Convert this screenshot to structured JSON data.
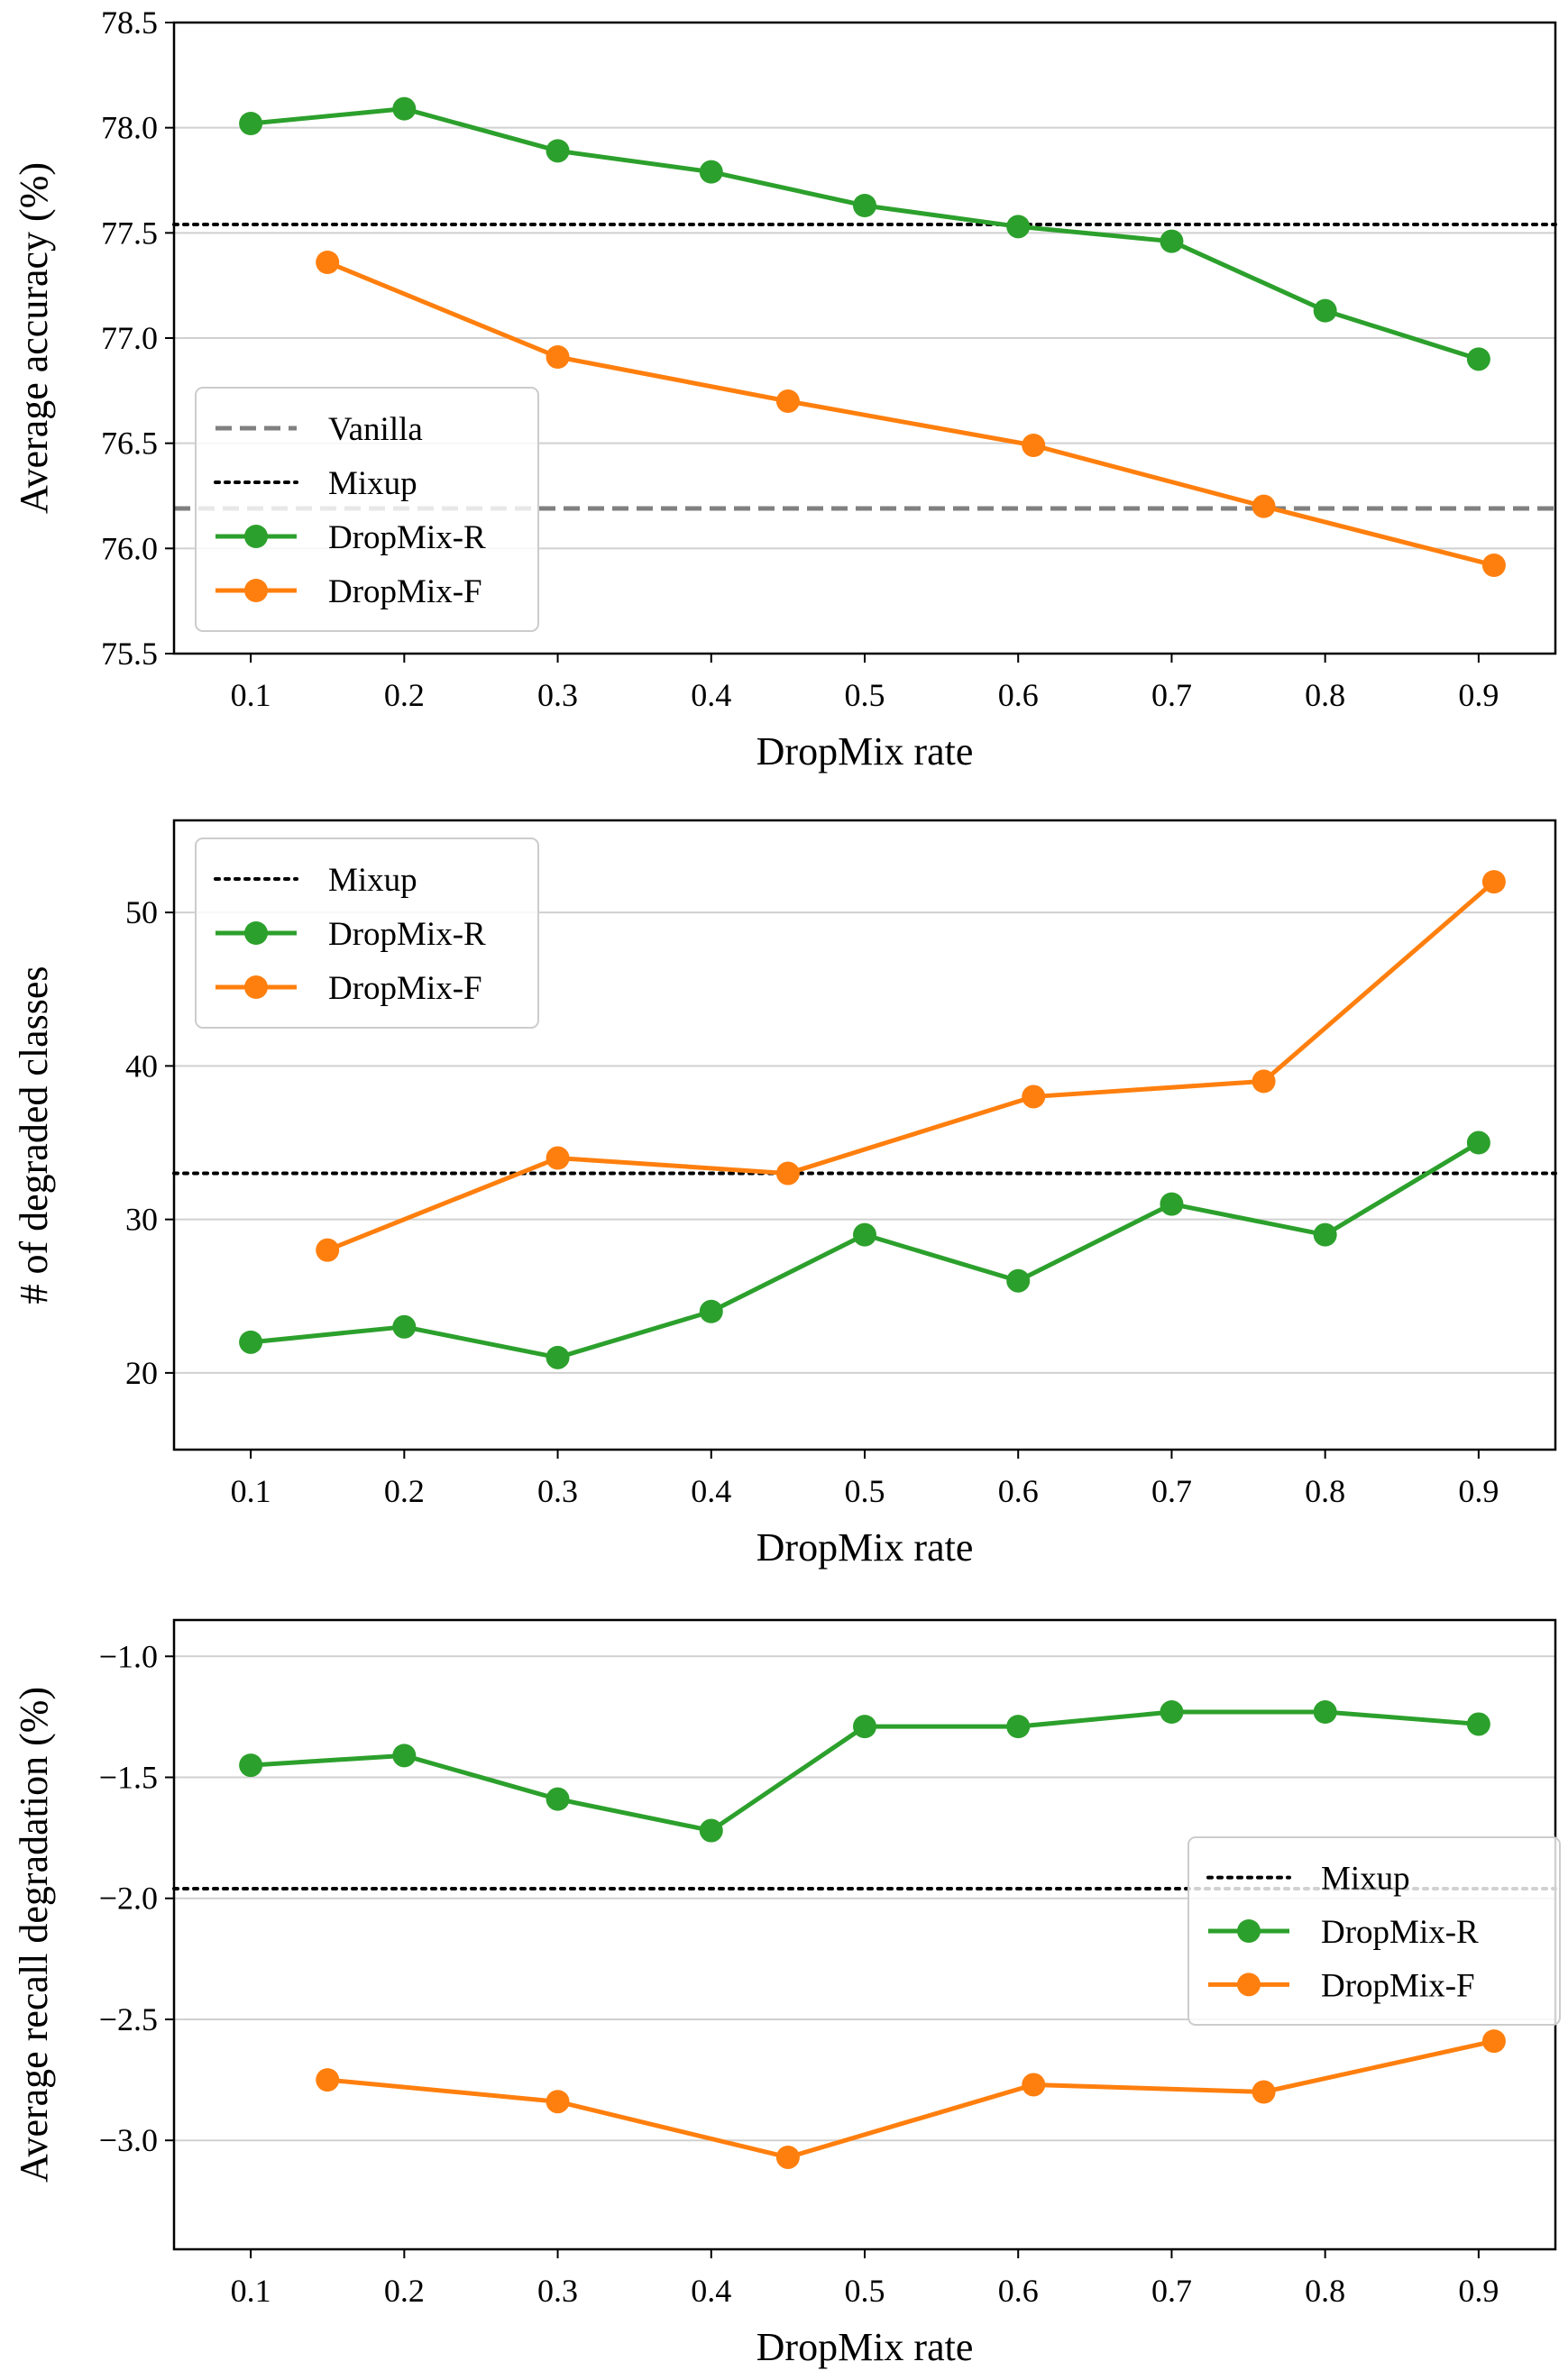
{
  "colors": {
    "dropmix_r": "#2ca02c",
    "dropmix_f": "#ff7f0e",
    "vanilla": "#808080",
    "mixup": "#000000",
    "grid": "#d0d0d0"
  },
  "chart_data": [
    {
      "type": "line",
      "xlabel": "DropMix rate",
      "ylabel": "Average accuracy (%)",
      "xlim": [
        0.05,
        0.95
      ],
      "ylim": [
        75.5,
        78.5
      ],
      "xticks": [
        0.1,
        0.2,
        0.3,
        0.4,
        0.5,
        0.6,
        0.7,
        0.8,
        0.9
      ],
      "xtick_labels": [
        "0.1",
        "0.2",
        "0.3",
        "0.4",
        "0.5",
        "0.6",
        "0.7",
        "0.8",
        "0.9"
      ],
      "yticks": [
        75.5,
        76.0,
        76.5,
        77.0,
        77.5,
        78.0,
        78.5
      ],
      "ytick_labels": [
        "75.5",
        "76.0",
        "76.5",
        "77.0",
        "77.5",
        "78.0",
        "78.5"
      ],
      "grid": "horizontal",
      "legend_position": "center-left",
      "legend": [
        "Vanilla",
        "Mixup",
        "DropMix-R",
        "DropMix-F"
      ],
      "reference_lines": [
        {
          "name": "Vanilla",
          "y": 76.19,
          "style": "dashed",
          "color": "#808080"
        },
        {
          "name": "Mixup",
          "y": 77.54,
          "style": "dotted",
          "color": "#000000"
        }
      ],
      "series": [
        {
          "name": "DropMix-R",
          "color": "#2ca02c",
          "x": [
            0.1,
            0.2,
            0.3,
            0.4,
            0.5,
            0.6,
            0.7,
            0.8,
            0.9
          ],
          "y": [
            78.02,
            78.09,
            77.89,
            77.79,
            77.63,
            77.53,
            77.46,
            77.13,
            76.9
          ]
        },
        {
          "name": "DropMix-F",
          "color": "#ff7f0e",
          "x": [
            0.15,
            0.3,
            0.45,
            0.61,
            0.76,
            0.91
          ],
          "y": [
            77.36,
            76.91,
            76.7,
            76.49,
            76.2,
            75.92
          ]
        }
      ]
    },
    {
      "type": "line",
      "xlabel": "DropMix rate",
      "ylabel": "# of degraded classes",
      "xlim": [
        0.05,
        0.95
      ],
      "ylim": [
        15,
        56
      ],
      "xticks": [
        0.1,
        0.2,
        0.3,
        0.4,
        0.5,
        0.6,
        0.7,
        0.8,
        0.9
      ],
      "xtick_labels": [
        "0.1",
        "0.2",
        "0.3",
        "0.4",
        "0.5",
        "0.6",
        "0.7",
        "0.8",
        "0.9"
      ],
      "yticks": [
        20,
        30,
        40,
        50
      ],
      "ytick_labels": [
        "20",
        "30",
        "40",
        "50"
      ],
      "grid": "horizontal",
      "legend_position": "top-left",
      "legend": [
        "Mixup",
        "DropMix-R",
        "DropMix-F"
      ],
      "reference_lines": [
        {
          "name": "Mixup",
          "y": 33,
          "style": "dotted",
          "color": "#000000"
        }
      ],
      "series": [
        {
          "name": "DropMix-R",
          "color": "#2ca02c",
          "x": [
            0.1,
            0.2,
            0.3,
            0.4,
            0.5,
            0.6,
            0.7,
            0.8,
            0.9
          ],
          "y": [
            22,
            23,
            21,
            24,
            29,
            26,
            31,
            29,
            35
          ]
        },
        {
          "name": "DropMix-F",
          "color": "#ff7f0e",
          "x": [
            0.15,
            0.3,
            0.45,
            0.61,
            0.76,
            0.91
          ],
          "y": [
            28,
            34,
            33,
            38,
            39,
            52
          ]
        }
      ]
    },
    {
      "type": "line",
      "xlabel": "DropMix rate",
      "ylabel": "Average recall degradation (%)",
      "xlim": [
        0.05,
        0.95
      ],
      "ylim": [
        -3.45,
        -0.85
      ],
      "xticks": [
        0.1,
        0.2,
        0.3,
        0.4,
        0.5,
        0.6,
        0.7,
        0.8,
        0.9
      ],
      "xtick_labels": [
        "0.1",
        "0.2",
        "0.3",
        "0.4",
        "0.5",
        "0.6",
        "0.7",
        "0.8",
        "0.9"
      ],
      "yticks": [
        -3.0,
        -2.5,
        -2.0,
        -1.5,
        -1.0
      ],
      "ytick_labels": [
        "−3.0",
        "−2.5",
        "−2.0",
        "−1.5",
        "−1.0"
      ],
      "grid": "horizontal",
      "legend_position": "center-right",
      "legend": [
        "Mixup",
        "DropMix-R",
        "DropMix-F"
      ],
      "reference_lines": [
        {
          "name": "Mixup",
          "y": -1.96,
          "style": "dotted",
          "color": "#000000"
        }
      ],
      "series": [
        {
          "name": "DropMix-R",
          "color": "#2ca02c",
          "x": [
            0.1,
            0.2,
            0.3,
            0.4,
            0.5,
            0.6,
            0.7,
            0.8,
            0.9
          ],
          "y": [
            -1.45,
            -1.41,
            -1.59,
            -1.72,
            -1.29,
            -1.29,
            -1.23,
            -1.23,
            -1.28
          ]
        },
        {
          "name": "DropMix-F",
          "color": "#ff7f0e",
          "x": [
            0.15,
            0.3,
            0.45,
            0.61,
            0.76,
            0.91
          ],
          "y": [
            -2.75,
            -2.84,
            -3.07,
            -2.77,
            -2.8,
            -2.59
          ]
        }
      ]
    }
  ]
}
